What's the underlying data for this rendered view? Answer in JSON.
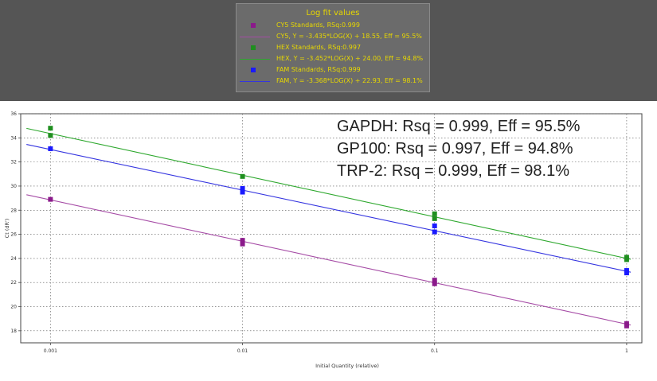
{
  "legend": {
    "title": "Log fit values",
    "entries": [
      {
        "text": "CY5 Standards, RSq:0.999",
        "kind": "marker",
        "color": "#8b1a8b"
      },
      {
        "text": "CY5, Y = -3.435*LOG(X) + 18.55, Eff = 95.5%",
        "kind": "line",
        "color": "#a64ca6"
      },
      {
        "text": "HEX Standards, RSq:0.997",
        "kind": "marker",
        "color": "#1f8f1f"
      },
      {
        "text": "HEX, Y = -3.452*LOG(X) + 24.00, Eff = 94.8%",
        "kind": "line",
        "color": "#2ea82e"
      },
      {
        "text": "FAM Standards, RSq:0.999",
        "kind": "marker",
        "color": "#1a1aff"
      },
      {
        "text": "FAM, Y = -3.368*LOG(X) + 22.93, Eff = 98.1%",
        "kind": "line",
        "color": "#3535e0"
      }
    ]
  },
  "chart_data": {
    "type": "scatter",
    "xlabel": "Initial Quantity (relative)",
    "ylabel": "Ct (dR')",
    "xscale": "log",
    "xlim": [
      0.0007,
      1.2
    ],
    "ylim": [
      17,
      36
    ],
    "xticks": [
      0.001,
      0.01,
      0.1,
      1
    ],
    "xtick_labels": [
      "0.001",
      "0.01",
      "0.1",
      "1"
    ],
    "yticks": [
      18,
      20,
      22,
      24,
      26,
      28,
      30,
      32,
      34,
      36
    ],
    "grid": true,
    "annotations": [
      "GAPDH: Rsq = 0.999, Eff = 95.5%",
      "GP100: Rsq = 0.997, Eff = 94.8%",
      "TRP-2: Rsq = 0.999, Eff = 98.1%"
    ],
    "series": [
      {
        "name": "CY5",
        "color": "#8b1a8b",
        "line_color": "#a64ca6",
        "slope": -3.435,
        "intercept": 18.55,
        "points": [
          [
            0.001,
            28.9
          ],
          [
            0.01,
            25.5
          ],
          [
            0.01,
            25.2
          ],
          [
            0.1,
            22.2
          ],
          [
            0.1,
            21.9
          ],
          [
            1,
            18.6
          ],
          [
            1,
            18.4
          ]
        ]
      },
      {
        "name": "HEX",
        "color": "#1f8f1f",
        "line_color": "#2ea82e",
        "slope": -3.452,
        "intercept": 24.0,
        "points": [
          [
            0.001,
            34.8
          ],
          [
            0.001,
            34.2
          ],
          [
            0.01,
            30.8
          ],
          [
            0.1,
            27.7
          ],
          [
            0.1,
            27.3
          ],
          [
            1,
            24.1
          ],
          [
            1,
            23.9
          ]
        ]
      },
      {
        "name": "FAM",
        "color": "#1a1aff",
        "line_color": "#3535e0",
        "slope": -3.368,
        "intercept": 22.93,
        "points": [
          [
            0.001,
            33.1
          ],
          [
            0.01,
            29.8
          ],
          [
            0.01,
            29.5
          ],
          [
            0.1,
            26.7
          ],
          [
            0.1,
            26.2
          ],
          [
            1,
            23.0
          ],
          [
            1,
            22.8
          ]
        ]
      }
    ]
  }
}
